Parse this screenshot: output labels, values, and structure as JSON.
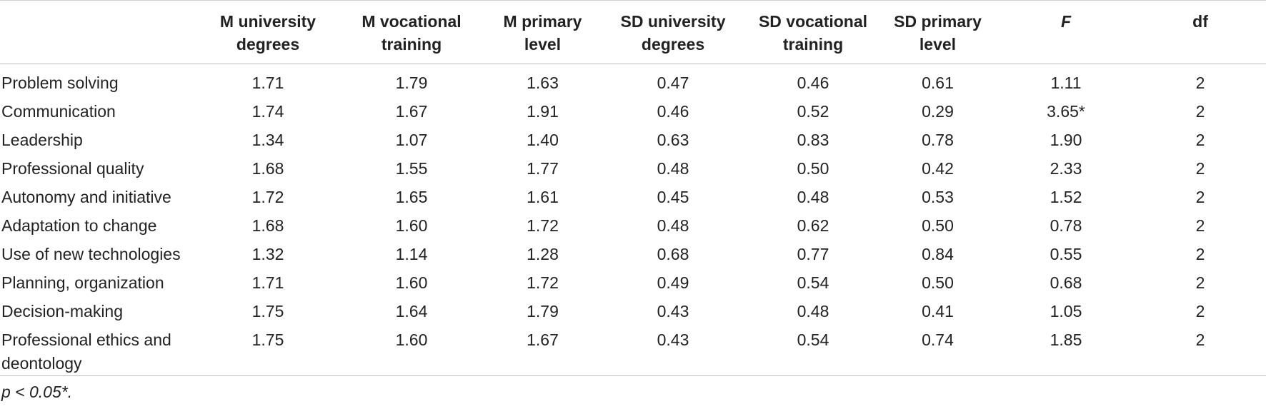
{
  "table": {
    "headers": [
      "",
      "M university degrees",
      "M vocational training",
      "M primary level",
      "SD university degrees",
      "SD vocational training",
      "SD primary level",
      "F",
      "df"
    ],
    "rows": [
      [
        "Problem solving",
        "1.71",
        "1.79",
        "1.63",
        "0.47",
        "0.46",
        "0.61",
        "1.11",
        "2"
      ],
      [
        "Communication",
        "1.74",
        "1.67",
        "1.91",
        "0.46",
        "0.52",
        "0.29",
        "3.65*",
        "2"
      ],
      [
        "Leadership",
        "1.34",
        "1.07",
        "1.40",
        "0.63",
        "0.83",
        "0.78",
        "1.90",
        "2"
      ],
      [
        "Professional quality",
        "1.68",
        "1.55",
        "1.77",
        "0.48",
        "0.50",
        "0.42",
        "2.33",
        "2"
      ],
      [
        "Autonomy and initiative",
        "1.72",
        "1.65",
        "1.61",
        "0.45",
        "0.48",
        "0.53",
        "1.52",
        "2"
      ],
      [
        "Adaptation to change",
        "1.68",
        "1.60",
        "1.72",
        "0.48",
        "0.62",
        "0.50",
        "0.78",
        "2"
      ],
      [
        "Use of new technologies",
        "1.32",
        "1.14",
        "1.28",
        "0.68",
        "0.77",
        "0.84",
        "0.55",
        "2"
      ],
      [
        "Planning, organization",
        "1.71",
        "1.60",
        "1.72",
        "0.49",
        "0.54",
        "0.50",
        "0.68",
        "2"
      ],
      [
        "Decision-making",
        "1.75",
        "1.64",
        "1.79",
        "0.43",
        "0.48",
        "0.41",
        "1.05",
        "2"
      ],
      [
        "Professional ethics and deontology",
        "1.75",
        "1.60",
        "1.67",
        "0.43",
        "0.54",
        "0.74",
        "1.85",
        "2"
      ]
    ],
    "footnote": "p < 0.05*."
  }
}
